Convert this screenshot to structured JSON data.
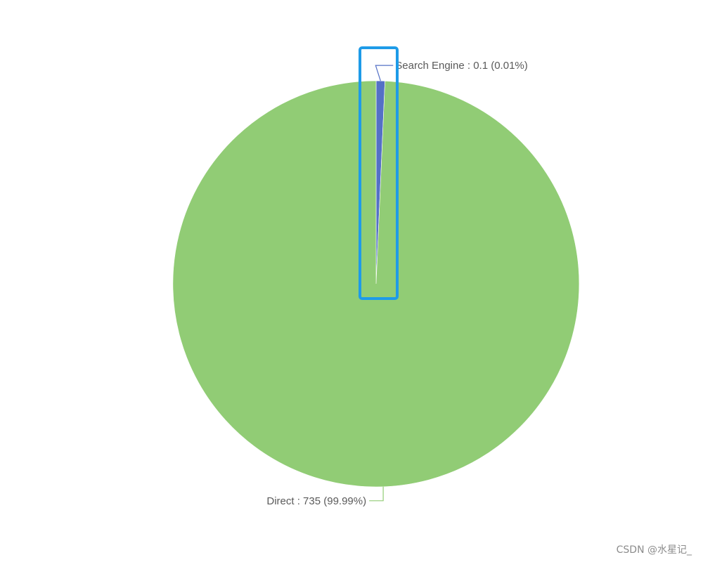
{
  "chart_data": {
    "type": "pie",
    "slices": [
      {
        "name": "Search Engine",
        "value": 0.1,
        "label": "Search Engine : 0.1 (0.01%)",
        "color": "#5470c6"
      },
      {
        "name": "Direct",
        "value": 735,
        "label": "Direct : 735 (99.99%)",
        "color": "#91cc75"
      }
    ],
    "start_angle": "12 o'clock",
    "direction": "clockwise",
    "highlight": {
      "target": "Search Engine",
      "color": "#1e9be8"
    }
  },
  "watermark": "CSDN @水星记_",
  "label_text_color": "#5a5a5a"
}
